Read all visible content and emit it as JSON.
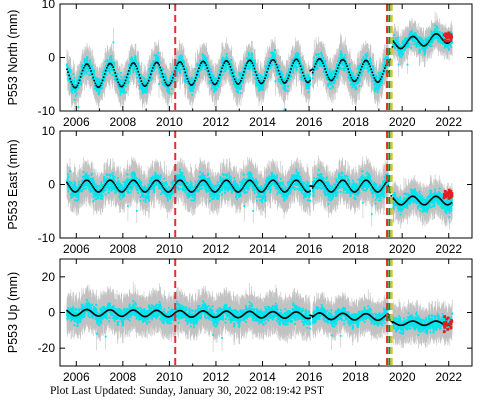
{
  "chart_data": [
    {
      "type": "scatter",
      "ylabel": "P553 North (mm)",
      "xlim": [
        2005.3,
        2023.0
      ],
      "ylim": [
        -10,
        10
      ],
      "xticks": [
        2006,
        2008,
        2010,
        2012,
        2014,
        2016,
        2018,
        2020,
        2022
      ],
      "yticks": [
        -10,
        0,
        10
      ],
      "grid": false,
      "series": [
        {
          "kind": "measurements",
          "color": "#00e5f0",
          "error_bar_color": "#b8b8b8"
        },
        {
          "kind": "model",
          "color": "#000000",
          "style": "dashed"
        },
        {
          "kind": "recent",
          "color": "#e02020"
        }
      ],
      "segments": [
        {
          "x": [
            2005.6,
            2016.05
          ],
          "base": -3.5,
          "trend": 0.1,
          "amp": 2.2,
          "noise": 1.6,
          "err": 2.6
        },
        {
          "x": [
            2016.15,
            2019.4
          ],
          "base": -2.2,
          "trend": -0.15,
          "amp": 2.0,
          "noise": 1.7,
          "err": 2.8
        },
        {
          "x": [
            2019.6,
            2022.15
          ],
          "base": 2.5,
          "trend": 0.5,
          "amp": 1.0,
          "noise": 1.4,
          "err": 2.2
        }
      ],
      "model_breaks": [
        {
          "x": [
            2005.6,
            2019.45
          ],
          "offset_after": 4.5
        }
      ],
      "red_points": {
        "x": [
          2021.8,
          2022.15
        ],
        "y_center": 4.0,
        "spread": 1.5
      },
      "vlines": [
        {
          "x": 2010.25,
          "color": "#e03030",
          "style": "dashed"
        },
        {
          "x": 2019.35,
          "color": "#e03030",
          "style": "dashed"
        },
        {
          "x": 2019.45,
          "color": "#1a8a1a",
          "style": "dashed"
        },
        {
          "x": 2019.55,
          "color": "#e0c020",
          "style": "dashed"
        }
      ]
    },
    {
      "type": "scatter",
      "ylabel": "P553 East (mm)",
      "xlim": [
        2005.3,
        2023.0
      ],
      "ylim": [
        -10,
        10
      ],
      "xticks": [
        2006,
        2008,
        2010,
        2012,
        2014,
        2016,
        2018,
        2020,
        2022
      ],
      "yticks": [
        -10,
        0,
        10
      ],
      "grid": false,
      "series": [
        {
          "kind": "measurements",
          "color": "#00e5f0",
          "error_bar_color": "#b8b8b8"
        },
        {
          "kind": "model",
          "color": "#000000",
          "style": "dotted"
        },
        {
          "kind": "recent",
          "color": "#e02020"
        }
      ],
      "segments": [
        {
          "x": [
            2005.6,
            2016.05
          ],
          "base": -0.3,
          "trend": 0.0,
          "amp": 1.1,
          "noise": 1.7,
          "err": 2.8
        },
        {
          "x": [
            2016.15,
            2019.4
          ],
          "base": -0.3,
          "trend": 0.0,
          "amp": 1.1,
          "noise": 1.7,
          "err": 2.8
        },
        {
          "x": [
            2019.6,
            2022.15
          ],
          "base": -3.0,
          "trend": 0.0,
          "amp": 0.8,
          "noise": 1.6,
          "err": 2.5
        }
      ],
      "model_breaks": [],
      "red_points": {
        "x": [
          2021.8,
          2022.15
        ],
        "y_center": -1.8,
        "spread": 1.6
      },
      "vlines": [
        {
          "x": 2010.25,
          "color": "#e03030",
          "style": "dashed"
        },
        {
          "x": 2019.35,
          "color": "#e03030",
          "style": "dashed"
        },
        {
          "x": 2019.45,
          "color": "#1a8a1a",
          "style": "dashed"
        },
        {
          "x": 2019.55,
          "color": "#e0c020",
          "style": "dashed"
        }
      ]
    },
    {
      "type": "scatter",
      "ylabel": "P553 Up (mm)",
      "xlim": [
        2005.3,
        2023.0
      ],
      "ylim": [
        -30,
        30
      ],
      "xticks": [
        2006,
        2008,
        2010,
        2012,
        2014,
        2016,
        2018,
        2020,
        2022
      ],
      "yticks": [
        -20,
        0,
        20
      ],
      "grid": false,
      "series": [
        {
          "kind": "measurements",
          "color": "#00e5f0",
          "error_bar_color": "#b8b8b8"
        },
        {
          "kind": "model",
          "color": "#000000",
          "style": "dotted"
        },
        {
          "kind": "recent",
          "color": "#e02020"
        }
      ],
      "segments": [
        {
          "x": [
            2005.6,
            2016.05
          ],
          "base": 0.0,
          "trend": -0.15,
          "amp": 1.8,
          "noise": 4.5,
          "err": 9.0
        },
        {
          "x": [
            2016.15,
            2019.4
          ],
          "base": -2.0,
          "trend": -0.2,
          "amp": 1.8,
          "noise": 4.0,
          "err": 8.0
        },
        {
          "x": [
            2019.6,
            2022.15
          ],
          "base": -6.0,
          "trend": 0.0,
          "amp": 1.2,
          "noise": 4.5,
          "err": 8.0
        }
      ],
      "model_breaks": [],
      "red_points": {
        "x": [
          2021.8,
          2022.15
        ],
        "y_center": -6.0,
        "spread": 6.0
      },
      "vlines": [
        {
          "x": 2010.25,
          "color": "#e03030",
          "style": "dashed"
        },
        {
          "x": 2019.35,
          "color": "#e03030",
          "style": "dashed"
        },
        {
          "x": 2019.45,
          "color": "#1a8a1a",
          "style": "dashed"
        },
        {
          "x": 2019.55,
          "color": "#e0c020",
          "style": "dashed"
        }
      ]
    }
  ],
  "footer": {
    "label": "Plot Last Updated:",
    "timestamp": "Sunday, January 30, 2022 08:19:42 PST"
  }
}
